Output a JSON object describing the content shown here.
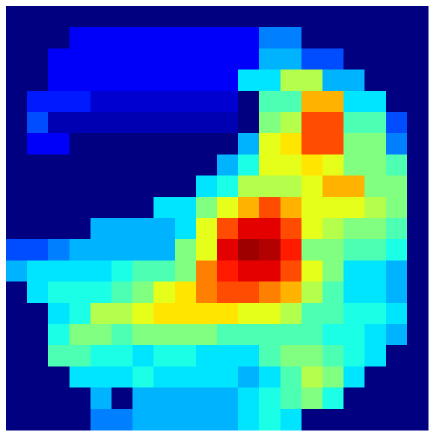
{
  "chart_data": {
    "type": "heatmap",
    "colormap": "jet",
    "values": [
      [
        0,
        0,
        0,
        0,
        0,
        0,
        0,
        0,
        0,
        0,
        0,
        0,
        0,
        0,
        0,
        0,
        0,
        0,
        0,
        0
      ],
      [
        0,
        0,
        0,
        0.12,
        0.12,
        0.12,
        0.12,
        0.12,
        0.12,
        0.12,
        0.12,
        0.12,
        0.25,
        0.25,
        0,
        0,
        0,
        0,
        0,
        0
      ],
      [
        0,
        0,
        0.12,
        0.12,
        0.12,
        0.12,
        0.12,
        0.12,
        0.12,
        0.12,
        0.12,
        0.12,
        0.3,
        0.3,
        0.2,
        0.2,
        0,
        0,
        0,
        0
      ],
      [
        0,
        0,
        0.12,
        0.12,
        0.12,
        0.12,
        0.12,
        0.12,
        0.12,
        0.12,
        0.12,
        0.35,
        0.35,
        0.55,
        0.55,
        0.3,
        0.3,
        0,
        0,
        0
      ],
      [
        0,
        0.15,
        0.15,
        0.15,
        0.08,
        0.08,
        0.08,
        0.08,
        0.08,
        0.08,
        0.08,
        0,
        0.45,
        0.45,
        0.7,
        0.7,
        0.35,
        0.35,
        0,
        0
      ],
      [
        0,
        0.2,
        0.05,
        0.05,
        0.05,
        0.05,
        0.05,
        0.05,
        0.05,
        0.05,
        0.05,
        0,
        0.5,
        0.55,
        0.8,
        0.8,
        0.45,
        0.45,
        0.2,
        0
      ],
      [
        0,
        0.12,
        0.12,
        0,
        0,
        0,
        0,
        0,
        0,
        0,
        0,
        0.3,
        0.6,
        0.65,
        0.8,
        0.8,
        0.5,
        0.5,
        0.25,
        0
      ],
      [
        0,
        0,
        0,
        0,
        0,
        0,
        0,
        0,
        0,
        0,
        0.3,
        0.4,
        0.6,
        0.6,
        0.65,
        0.6,
        0.5,
        0.5,
        0.45,
        0
      ],
      [
        0,
        0,
        0,
        0,
        0,
        0,
        0,
        0,
        0,
        0.35,
        0.4,
        0.55,
        0.55,
        0.55,
        0.6,
        0.7,
        0.7,
        0.5,
        0.5,
        0
      ],
      [
        0,
        0,
        0,
        0,
        0,
        0,
        0,
        0.35,
        0.35,
        0.5,
        0.6,
        0.7,
        0.8,
        0.7,
        0.6,
        0.6,
        0.6,
        0.55,
        0.5,
        0
      ],
      [
        0,
        0,
        0,
        0,
        0.3,
        0.3,
        0.3,
        0.3,
        0.35,
        0.6,
        0.8,
        0.9,
        0.9,
        0.8,
        0.6,
        0.55,
        0.5,
        0.5,
        0.45,
        0
      ],
      [
        0.2,
        0.2,
        0.25,
        0.3,
        0.3,
        0.3,
        0.3,
        0.3,
        0.5,
        0.6,
        0.9,
        0.97,
        0.95,
        0.85,
        0.5,
        0.5,
        0.45,
        0.45,
        0.4,
        0
      ],
      [
        0.3,
        0.35,
        0.35,
        0.35,
        0.35,
        0.4,
        0.45,
        0.45,
        0.5,
        0.75,
        0.85,
        0.9,
        0.9,
        0.8,
        0.6,
        0.5,
        0.35,
        0.35,
        0.3,
        0
      ],
      [
        0,
        0.35,
        0.4,
        0.4,
        0.4,
        0.45,
        0.5,
        0.6,
        0.65,
        0.75,
        0.8,
        0.8,
        0.75,
        0.7,
        0.55,
        0.45,
        0.35,
        0.35,
        0.3,
        0
      ],
      [
        0,
        0,
        0.35,
        0.4,
        0.55,
        0.55,
        0.6,
        0.65,
        0.65,
        0.65,
        0.65,
        0.6,
        0.6,
        0.55,
        0.45,
        0.45,
        0.4,
        0.4,
        0.35,
        0
      ],
      [
        0,
        0,
        0.4,
        0.5,
        0.5,
        0.45,
        0.5,
        0.5,
        0.5,
        0.5,
        0.45,
        0.45,
        0.45,
        0.45,
        0.45,
        0.4,
        0.4,
        0.35,
        0.3,
        0
      ],
      [
        0,
        0,
        0.45,
        0.45,
        0.4,
        0.4,
        0.35,
        0.4,
        0.4,
        0.35,
        0.35,
        0.35,
        0.45,
        0.5,
        0.5,
        0.45,
        0.4,
        0.35,
        0,
        0
      ],
      [
        0,
        0,
        0,
        0.35,
        0.35,
        0.35,
        0.4,
        0.35,
        0.35,
        0.35,
        0.35,
        0.3,
        0.35,
        0.45,
        0.55,
        0.5,
        0.35,
        0,
        0,
        0
      ],
      [
        0,
        0,
        0,
        0,
        0.3,
        0,
        0.3,
        0.3,
        0.3,
        0.3,
        0.3,
        0.35,
        0.4,
        0.45,
        0.5,
        0.4,
        0,
        0,
        0,
        0
      ],
      [
        0,
        0,
        0,
        0,
        0.25,
        0.25,
        0.3,
        0.3,
        0.3,
        0.3,
        0.3,
        0.35,
        0.4,
        0.35,
        0,
        0,
        0,
        0,
        0,
        0
      ]
    ]
  }
}
